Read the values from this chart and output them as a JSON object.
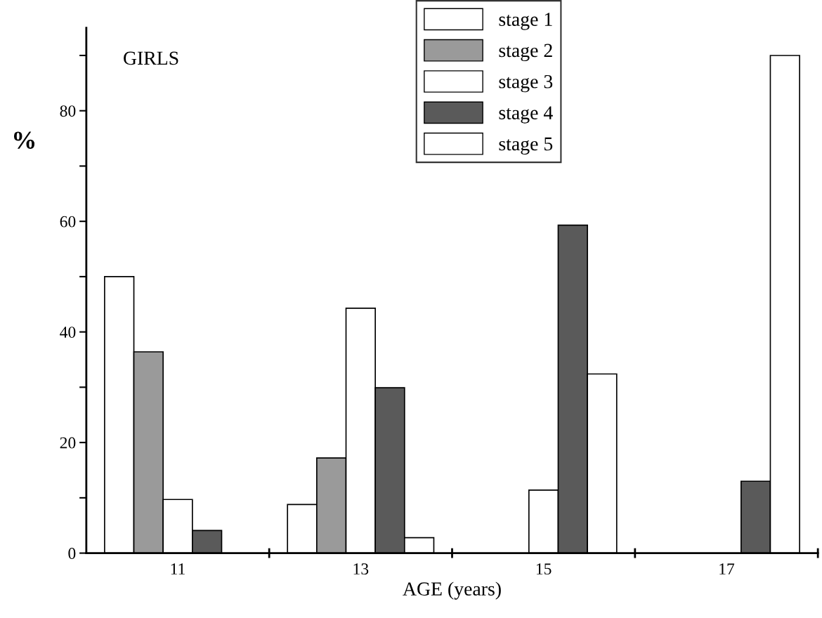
{
  "chart_data": {
    "type": "bar",
    "title": "GIRLS",
    "xlabel": "AGE (years)",
    "ylabel": "%",
    "categories": [
      "11",
      "13",
      "15",
      "17"
    ],
    "series": [
      {
        "name": "stage 1",
        "color": "#ffffff",
        "values": [
          50,
          8.8,
          null,
          null
        ]
      },
      {
        "name": "stage 2",
        "color": "#9a9a9a",
        "values": [
          36.4,
          17.2,
          null,
          null
        ]
      },
      {
        "name": "stage 3",
        "color": "#ffffff",
        "values": [
          9.7,
          44.3,
          11.4,
          null
        ]
      },
      {
        "name": "stage 4",
        "color": "#5a5a5a",
        "values": [
          4.1,
          29.9,
          59.3,
          13
        ]
      },
      {
        "name": "stage 5",
        "color": "#ffffff",
        "values": [
          null,
          2.8,
          32.4,
          90
        ]
      }
    ],
    "ylim": [
      0,
      95
    ],
    "yticks": [
      0,
      {
        "value": 10,
        "label": null
      },
      20,
      {
        "value": 30,
        "label": null
      },
      40,
      {
        "value": 50,
        "label": null
      },
      60,
      {
        "value": 70,
        "label": null
      },
      80,
      {
        "value": 90,
        "label": null
      }
    ],
    "grid": false,
    "legend": "top"
  }
}
